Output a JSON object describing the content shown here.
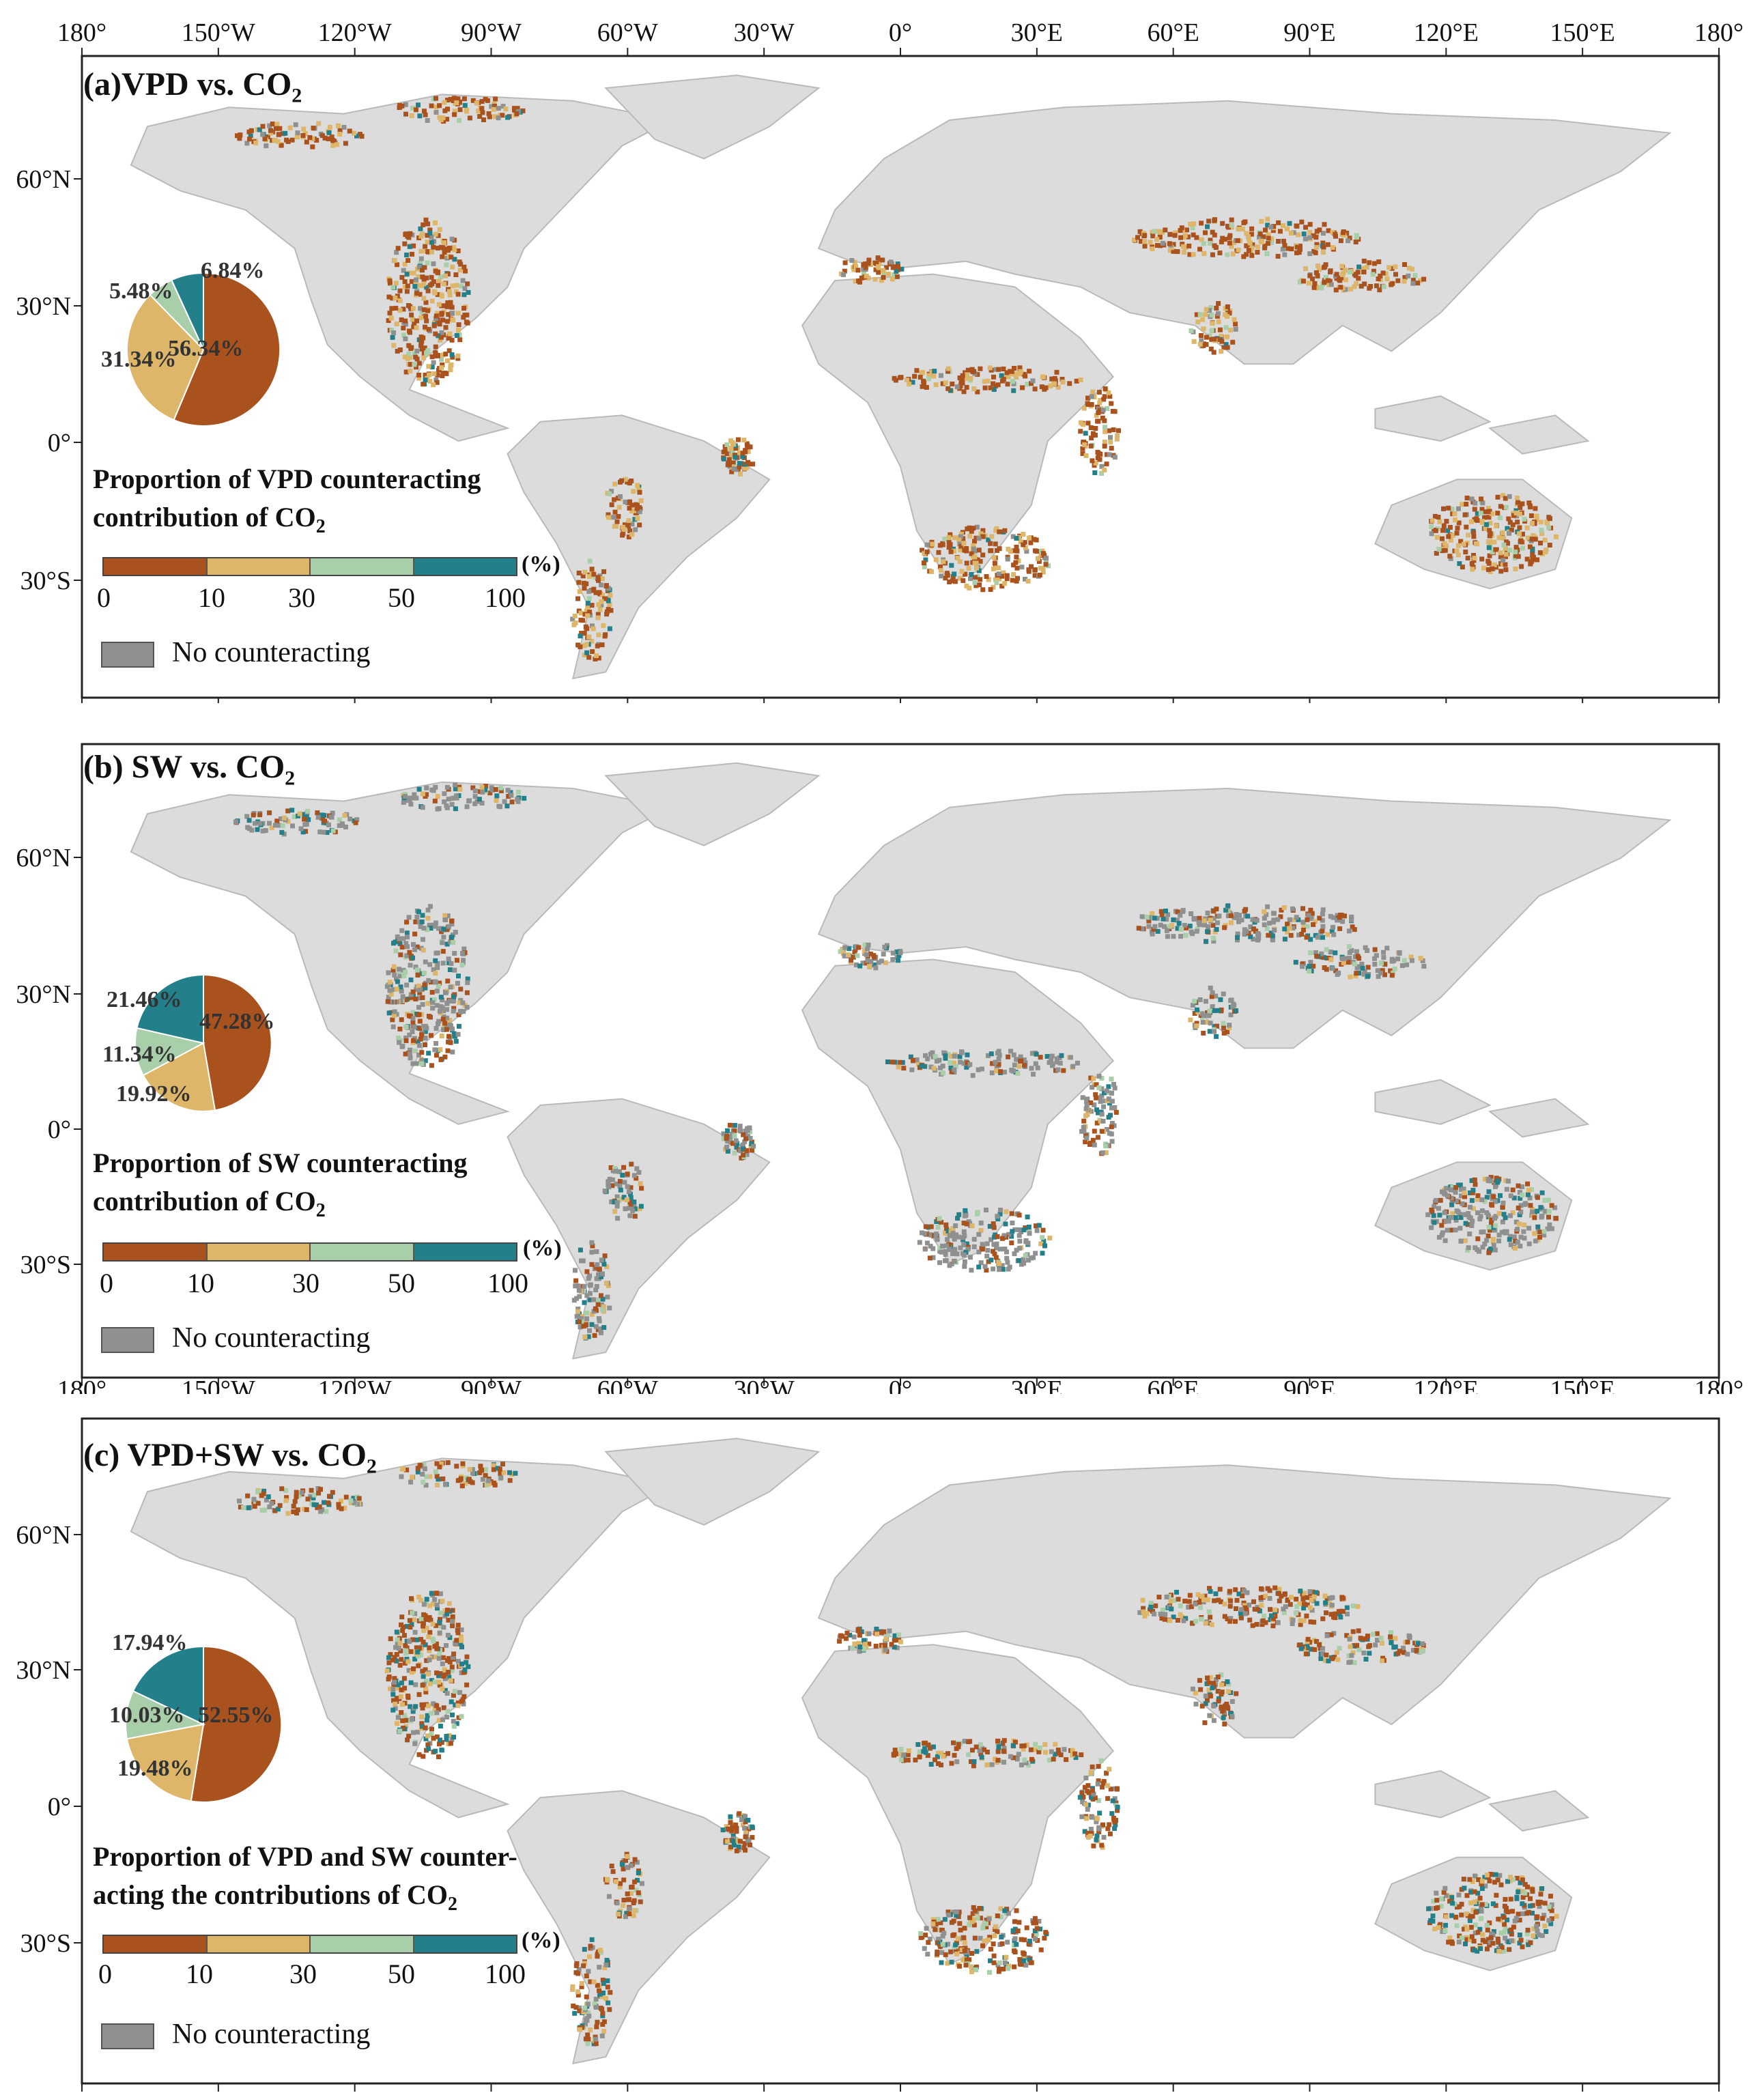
{
  "lon_ticks": [
    "180°",
    "150°W",
    "120°W",
    "90°W",
    "60°W",
    "30°W",
    "0°",
    "30°E",
    "60°E",
    "90°E",
    "120°E",
    "150°E",
    "180°"
  ],
  "lat_ticks": [
    "60°N",
    "30°N",
    "0°",
    "30°S"
  ],
  "colors": {
    "land": "#dcdcdc",
    "border": "#b9b9b9",
    "no_counteracting": "#8e9190",
    "bin_0_10": "#a9521e",
    "bin_10_30": "#ddb66a",
    "bin_30_50": "#a9ceaa",
    "bin_50_100": "#23808a"
  },
  "colorbar": {
    "ticks": [
      "0",
      "10",
      "30",
      "50",
      "100"
    ],
    "unit": "(%)",
    "no_counteracting_label": "No counteracting"
  },
  "panels": [
    {
      "title": "(a)VPD vs. CO",
      "title_sub": "2",
      "legend_line1": "Proportion of VPD counteracting",
      "legend_line2": "contribution of CO",
      "legend_sub": "2",
      "pie": {
        "labels": [
          "56.34%",
          "31.34%",
          "5.48%",
          "6.84%"
        ],
        "values": [
          56.34,
          31.34,
          5.48,
          6.84
        ]
      }
    },
    {
      "title": "(b) SW vs. CO",
      "title_sub": "2",
      "legend_line1": "Proportion of SW counteracting",
      "legend_line2": "contribution of CO",
      "legend_sub": "2",
      "pie": {
        "labels": [
          "47.28%",
          "19.92%",
          "11.34%",
          "21.46%"
        ],
        "values": [
          47.28,
          19.92,
          11.34,
          21.46
        ]
      }
    },
    {
      "title": "(c) VPD+SW vs. CO",
      "title_sub": "2",
      "legend_line1": "Proportion of VPD and SW counter-",
      "legend_line2": "acting the contributions of CO",
      "legend_sub": "2",
      "pie": {
        "labels": [
          "52.55%",
          "19.48%",
          "10.03%",
          "17.94%"
        ],
        "values": [
          52.55,
          19.48,
          10.03,
          17.94
        ]
      }
    }
  ]
}
